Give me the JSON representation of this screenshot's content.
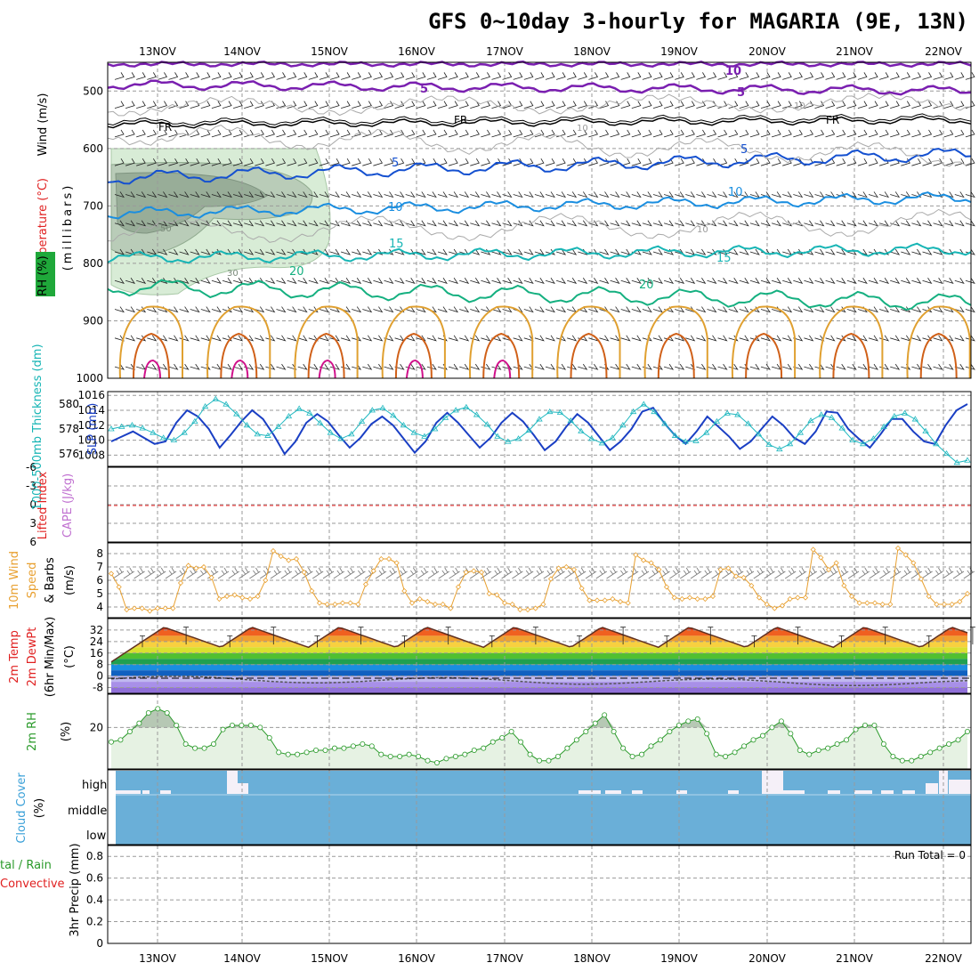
{
  "title": "GFS 0~10day 3-hourly for MAGARIA (9E, 13N)",
  "dates": [
    "13NOV",
    "14NOV",
    "15NOV",
    "16NOV",
    "17NOV",
    "18NOV",
    "19NOV",
    "20NOV",
    "21NOV",
    "22NOV"
  ],
  "colors": {
    "temp_500": "#7a1fb0",
    "freezing": "#000000",
    "temp_5": "#1450d0",
    "temp_10": "#1a8ee0",
    "temp_15": "#17b5b5",
    "temp_20": "#15b080",
    "warm_contour": "#e0a030",
    "hot_contour": "#d06018",
    "magenta": "#d0108a",
    "rh_fill": "#d8ecd6",
    "rh_mid": "#a9bfa9",
    "rh_dark": "#7f9480",
    "thickness": "#1a3fc4",
    "slp": "#20b8c0",
    "lifted": "#ff0000",
    "cape": "#c070d0",
    "wind10": "#e8a030",
    "rh2m": "#2a9a2a",
    "cloud": "#6aafd8"
  },
  "panels": {
    "upper_air": {
      "ylabel_wind": "Wind (m/s)",
      "ylabel_temp": "Temperature (°C)",
      "ylabel_rh": "RH (%)",
      "ylabel_p": "(millibars)",
      "y_ticks": [
        "500",
        "600",
        "700",
        "800",
        "900",
        "1000"
      ],
      "contour_labels": {
        "t10": "10",
        "t5": "5",
        "fr": "FR",
        "t5b": "5",
        "t10b": "10",
        "t15": "15",
        "t20": "20",
        "rh50": "50",
        "rh30": "30",
        "g10a": "10",
        "g10b": "10",
        "g10c": "10"
      }
    },
    "thickness_slp": {
      "ylabel_thickness": "1000-500mb Thickness (dm)",
      "ylabel_slp": "SLP (mb)",
      "left_ticks": [
        "580",
        "578",
        "576"
      ],
      "right_ticks": [
        "1016",
        "1014",
        "1012",
        "1010",
        "1008"
      ]
    },
    "stability": {
      "ylabel_li": "Lifted Index",
      "ylabel_cape": "CAPE (J/kg)",
      "ticks": [
        "-6",
        "-3",
        "0",
        "3",
        "6"
      ]
    },
    "wind10m": {
      "ylabel_a": "10m Wind",
      "ylabel_b": "Speed",
      "ylabel_c": "& Barbs",
      "ylabel_unit": "(m/s)",
      "ticks": [
        "8",
        "7",
        "6",
        "5",
        "4"
      ]
    },
    "temp2m": {
      "ylabel_a": "2m Temp",
      "ylabel_b": "2m DewPt",
      "ylabel_c": "(6hr Min/Max)",
      "ylabel_unit": "(°C)",
      "ticks": [
        "32",
        "24",
        "16",
        "8",
        "0",
        "-8"
      ]
    },
    "rh2m": {
      "ylabel_a": "2m RH",
      "ylabel_unit": "(%)",
      "ticks": [
        "20"
      ]
    },
    "cloud": {
      "ylabel_a": "Cloud Cover",
      "ylabel_unit": "(%)",
      "levels": [
        "high",
        "middle",
        "low"
      ]
    },
    "precip": {
      "ylabel_a": "tal / Rain",
      "ylabel_b": "Convective",
      "ylabel_c": "3hr Precip (mm)",
      "ticks": [
        "0.8",
        "0.6",
        "0.4",
        "0.2",
        "0"
      ],
      "run_total": "Run Total = 0"
    }
  },
  "chart_data": [
    {
      "type": "line",
      "name_note": "upper-air time-height cross section",
      "y": "pressure (mb)",
      "ylim": [
        1000,
        450
      ],
      "x": [
        "13NOV",
        "14NOV",
        "15NOV",
        "16NOV",
        "17NOV",
        "18NOV",
        "19NOV",
        "20NOV",
        "21NOV",
        "22NOV"
      ],
      "contours_temperature_C": [
        -10,
        -5,
        0,
        5,
        10,
        15,
        20
      ],
      "contours_rh_pct": [
        30,
        50
      ]
    },
    {
      "type": "line",
      "ylim_thickness_dm": [
        575,
        581
      ],
      "ylim_slp_mb": [
        1006,
        1016
      ],
      "series": [
        {
          "name": "1000-500mb Thickness (dm)",
          "values": [
            577.0,
            577.4,
            577.8,
            577.3,
            576.8,
            577.0,
            578.5,
            579.5,
            579.0,
            578.0,
            576.5,
            577.5,
            578.6,
            579.5,
            578.8,
            577.5,
            576.0,
            577.0,
            578.5,
            579.2,
            578.6,
            577.5,
            576.5,
            577.3,
            578.4,
            579.0,
            578.3,
            577.2,
            576.1,
            577.0,
            578.5,
            579.3,
            578.5,
            577.5,
            576.5,
            577.3,
            578.5,
            579.3,
            578.6,
            577.5,
            576.3,
            577.0,
            578.2,
            579.2,
            578.5,
            577.4,
            576.3,
            577.0,
            578.0,
            579.4,
            579.7,
            578.5,
            577.5,
            576.8,
            577.8,
            579.0,
            578.2,
            577.4,
            576.4,
            577.0,
            578.0,
            579.0,
            578.3,
            577.3,
            576.8,
            577.8,
            579.4,
            579.3,
            578.0,
            577.2,
            576.5,
            577.6,
            578.8,
            578.8,
            577.8,
            577.0,
            576.8,
            578.3,
            579.5,
            580.0
          ]
        },
        {
          "name": "SLP (mb)",
          "values": [
            1011.5,
            1011.8,
            1012.0,
            1011.6,
            1011.0,
            1010.3,
            1010.0,
            1011.0,
            1012.5,
            1014.5,
            1015.5,
            1014.8,
            1013.5,
            1012.0,
            1010.8,
            1010.6,
            1011.8,
            1013.2,
            1014.2,
            1013.6,
            1012.3,
            1011.0,
            1010.2,
            1010.8,
            1012.5,
            1014.0,
            1014.3,
            1013.3,
            1012.0,
            1011.0,
            1010.5,
            1011.5,
            1013.0,
            1014.0,
            1014.4,
            1013.4,
            1012.1,
            1010.5,
            1009.8,
            1010.2,
            1011.3,
            1012.8,
            1013.8,
            1013.7,
            1012.6,
            1011.2,
            1010.2,
            1009.6,
            1010.3,
            1012.0,
            1013.8,
            1014.8,
            1013.8,
            1012.2,
            1010.6,
            1009.8,
            1009.9,
            1011.0,
            1012.5,
            1013.6,
            1013.4,
            1012.2,
            1010.8,
            1009.4,
            1008.8,
            1009.5,
            1011.0,
            1012.6,
            1013.4,
            1013.0,
            1011.6,
            1010.0,
            1009.5,
            1010.2,
            1011.8,
            1013.2,
            1013.6,
            1012.8,
            1011.2,
            1009.5,
            1008.2,
            1007.0,
            1007.3
          ]
        }
      ]
    },
    {
      "type": "line",
      "ylim": [
        6,
        -6
      ],
      "series": [
        {
          "name": "Lifted Index",
          "values": [
            0
          ]
        }
      ]
    },
    {
      "type": "line",
      "ylim": [
        3.2,
        8.8
      ],
      "series": [
        {
          "name": "10m Wind Speed (m/s)",
          "values": [
            6.5,
            5.5,
            3.8,
            3.9,
            3.9,
            3.7,
            3.9,
            3.9,
            3.9,
            5.8,
            7.1,
            6.9,
            7.0,
            6.2,
            4.6,
            4.8,
            4.9,
            4.7,
            4.6,
            4.8,
            6.0,
            8.2,
            7.8,
            7.5,
            7.6,
            6.6,
            5.2,
            4.3,
            4.2,
            4.2,
            4.3,
            4.3,
            4.2,
            5.7,
            6.7,
            7.6,
            7.6,
            7.3,
            5.2,
            4.3,
            4.6,
            4.4,
            4.2,
            4.2,
            3.9,
            5.5,
            6.6,
            6.7,
            6.6,
            5.0,
            4.9,
            4.3,
            4.2,
            3.8,
            3.8,
            3.9,
            4.2,
            6.1,
            6.9,
            7.0,
            6.8,
            5.4,
            4.5,
            4.5,
            4.5,
            4.6,
            4.4,
            4.3,
            7.9,
            7.5,
            7.3,
            6.8,
            5.5,
            4.7,
            4.6,
            4.7,
            4.6,
            4.6,
            4.8,
            6.8,
            6.9,
            6.3,
            6.2,
            5.6,
            4.7,
            4.2,
            3.9,
            4.1,
            4.6,
            4.7,
            4.7,
            8.3,
            7.7,
            6.8,
            7.3,
            5.6,
            4.8,
            4.3,
            4.3,
            4.3,
            4.2,
            4.2,
            8.4,
            7.9,
            7.3,
            6.1,
            4.8,
            4.2,
            4.2,
            4.2,
            4.4,
            5.0
          ]
        }
      ]
    },
    {
      "type": "area",
      "ylim": [
        -12,
        40
      ],
      "series": [
        {
          "name": "2m Temp (°C)",
          "values_note": "diurnal cycle min ~20 max ~34"
        },
        {
          "name": "2m DewPt (°C)",
          "values_note": "about 0 to -8"
        }
      ]
    },
    {
      "type": "area",
      "ylim": [
        0,
        36
      ],
      "series": [
        {
          "name": "2m RH (%)",
          "values": [
            13,
            14,
            18,
            22,
            27,
            29,
            27,
            21,
            12,
            10,
            10,
            12,
            19,
            21,
            21,
            21,
            20,
            15,
            8,
            7,
            7,
            8,
            9,
            9,
            10,
            10,
            11,
            12,
            11,
            7,
            6,
            6,
            7,
            6,
            4,
            3,
            5,
            6,
            7,
            9,
            10,
            13,
            15,
            18,
            13,
            7,
            4,
            4,
            6,
            10,
            14,
            18,
            22,
            26,
            18,
            10,
            6,
            7,
            11,
            14,
            18,
            21,
            23,
            24,
            17,
            7,
            6,
            8,
            11,
            14,
            16,
            20,
            23,
            17,
            9,
            7,
            9,
            10,
            12,
            14,
            19,
            21,
            21,
            12,
            6,
            4,
            4,
            6,
            8,
            10,
            12,
            14,
            18
          ]
        }
      ]
    },
    {
      "type": "area",
      "ylim": [
        0,
        100
      ],
      "series": [
        {
          "name": "Cloud Cover (%)",
          "values_note": "low/middle full cover, high mostly covered"
        }
      ]
    },
    {
      "type": "bar",
      "ylim": [
        0,
        0.9
      ],
      "series": [
        {
          "name": "3hr Precip (mm)",
          "values": [
            0
          ]
        }
      ],
      "annotation": "Run Total = 0"
    }
  ]
}
